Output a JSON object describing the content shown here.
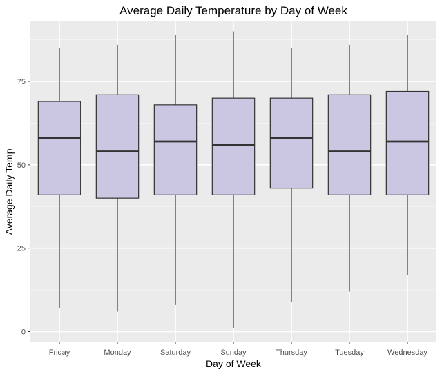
{
  "chart_data": {
    "type": "boxplot",
    "title": "Average Daily Temperature by Day of Week",
    "xlabel": "Day of Week",
    "ylabel": "Average Daily Temp",
    "ylim": [
      -3,
      93
    ],
    "y_ticks": [
      0,
      25,
      50,
      75
    ],
    "grid": true,
    "legend": "none",
    "categories": [
      "Friday",
      "Monday",
      "Saturday",
      "Sunday",
      "Thursday",
      "Tuesday",
      "Wednesday"
    ],
    "boxes": [
      {
        "category": "Friday",
        "min": 7,
        "q1": 41,
        "median": 58,
        "q3": 69,
        "max": 85
      },
      {
        "category": "Monday",
        "min": 6,
        "q1": 40,
        "median": 54,
        "q3": 71,
        "max": 86
      },
      {
        "category": "Saturday",
        "min": 8,
        "q1": 41,
        "median": 57,
        "q3": 68,
        "max": 89
      },
      {
        "category": "Sunday",
        "min": 1,
        "q1": 41,
        "median": 56,
        "q3": 70,
        "max": 90
      },
      {
        "category": "Thursday",
        "min": 9,
        "q1": 43,
        "median": 58,
        "q3": 70,
        "max": 85
      },
      {
        "category": "Tuesday",
        "min": 12,
        "q1": 41,
        "median": 54,
        "q3": 71,
        "max": 86
      },
      {
        "category": "Wednesday",
        "min": 17,
        "q1": 41,
        "median": 57,
        "q3": 72,
        "max": 89
      }
    ],
    "colors": {
      "panel": "#ebebeb",
      "grid_major": "#ffffff",
      "grid_minor": "#f5f5f5",
      "box_fill": "#cbc7e3",
      "box_stroke": "#333333"
    }
  }
}
